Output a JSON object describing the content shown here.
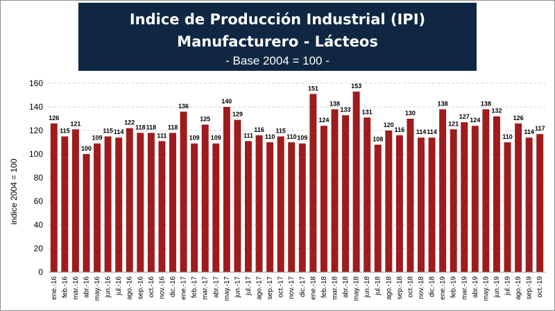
{
  "title": "Indice de Producción Industrial (IPI) Manufacturero - Lácteos",
  "subtitle": "- Base 2004 = 100 -",
  "colors": {
    "bar": "#9e1c1c",
    "title_bg": "#0f2742",
    "grid": "#c9d3dc"
  },
  "chart_data": {
    "type": "bar",
    "title": "Indice de Producción Industrial (IPI) Manufacturero - Lácteos",
    "subtitle": "- Base 2004 = 100 -",
    "xlabel": "",
    "ylabel": "indice 2004 = 100",
    "ylim": [
      0,
      160
    ],
    "yticks": [
      0,
      20,
      40,
      60,
      80,
      100,
      120,
      140,
      160
    ],
    "grid": "horizontal dashed",
    "categories": [
      "ene.-16",
      "feb.-16",
      "mar.-16",
      "abr.-16",
      "may.-16",
      "jun.-16",
      "jul.-16",
      "ago.-16",
      "sep.-16",
      "oct.-16",
      "nov.-16",
      "dic.-16",
      "ene.-17",
      "feb.-17",
      "mar.-17",
      "abr.-17",
      "may.-17",
      "jun.-17",
      "jul.-17",
      "ago.-17",
      "sep.-17",
      "oct.-17",
      "nov.-17",
      "dic.-17",
      "ene.-18",
      "feb.-18",
      "mar.-18",
      "abr.-18",
      "may.-18",
      "jun.-18",
      "jul.-18",
      "ago.-18",
      "sep.-18",
      "oct.-18",
      "nov.-18",
      "dic.-18",
      "ene.-19",
      "feb.-19",
      "mar.-19",
      "abr.-19",
      "may.-19",
      "jun.-19",
      "jul.-19",
      "ago.-19",
      "sep.-19",
      "oct.-19"
    ],
    "values": [
      126,
      115,
      121,
      100,
      109,
      115,
      114,
      122,
      118,
      118,
      111,
      118,
      136,
      109,
      125,
      109,
      140,
      129,
      111,
      116,
      110,
      115,
      110,
      109,
      151,
      124,
      138,
      133,
      153,
      131,
      108,
      120,
      116,
      130,
      114,
      114,
      138,
      121,
      127,
      124,
      138,
      132,
      110,
      126,
      114,
      117
    ]
  }
}
